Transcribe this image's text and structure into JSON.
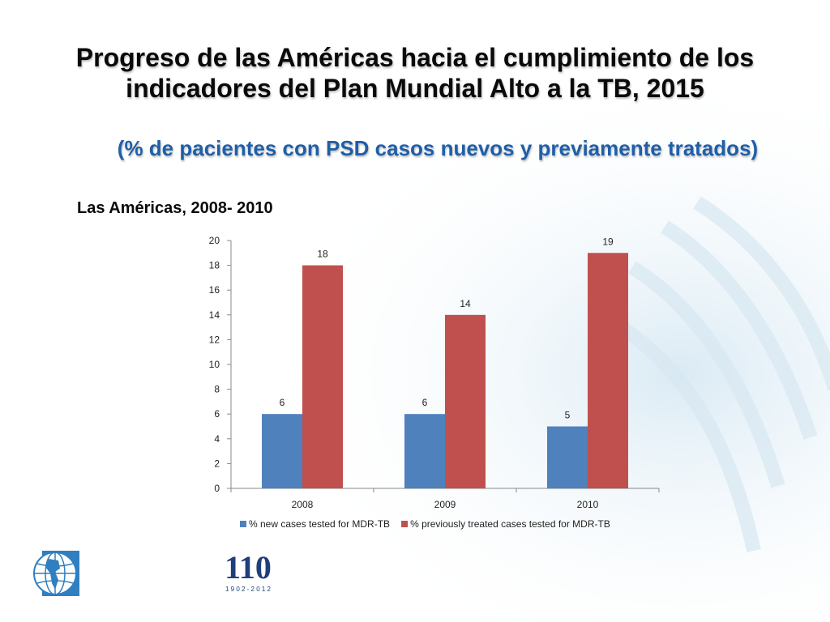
{
  "slide": {
    "title": "Progreso de las Américas hacia el cumplimiento de los indicadores del Plan Mundial Alto a la TB, 2015",
    "subtitle": "(% de pacientes con PSD casos nuevos y previamente tratados)",
    "region_label": "Las  Américas, 2008- 2010"
  },
  "logo110": {
    "number": "110",
    "years": "1 9 0 2  -  2 0 1 2"
  },
  "colors": {
    "series1": "#4f81bd",
    "series2": "#c0504d",
    "title": "#0a0a0a",
    "subtitle": "#1f5fa8"
  },
  "chart_data": {
    "type": "bar",
    "categories": [
      "2008",
      "2009",
      "2010"
    ],
    "series": [
      {
        "name": "% new cases  tested for MDR-TB",
        "values": [
          6,
          6,
          5
        ]
      },
      {
        "name": "% previously treated cases tested for MDR-TB",
        "values": [
          18,
          14,
          19
        ]
      }
    ],
    "ylim": [
      0,
      20
    ],
    "yticks": [
      0,
      2,
      4,
      6,
      8,
      10,
      12,
      14,
      16,
      18,
      20
    ],
    "legend_position": "bottom"
  }
}
